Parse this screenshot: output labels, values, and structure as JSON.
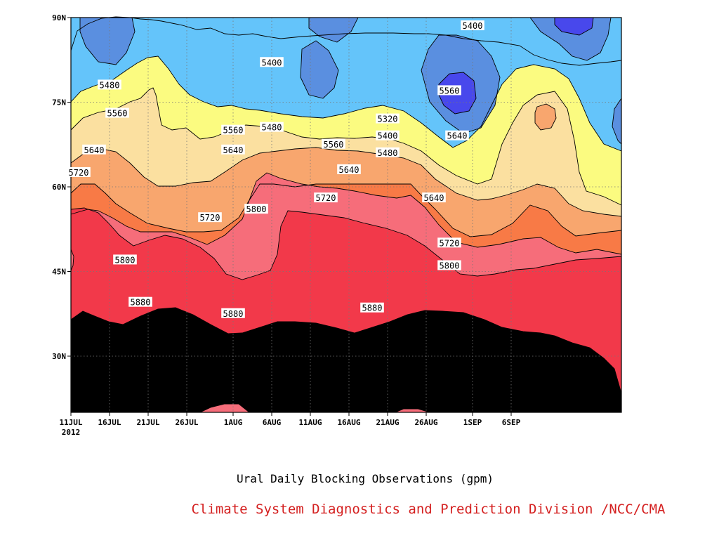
{
  "chart_data": {
    "type": "contour",
    "title": "Ural Daily Blocking Observations (gpm)",
    "credit": "Climate System Diagnostics and Prediction Division /NCC/CMA",
    "x_tick_labels": [
      "11JUL",
      "16JUL",
      "21JUL",
      "26JUL",
      "1AUG",
      "6AUG",
      "11AUG",
      "16AUG",
      "21AUG",
      "26AUG",
      "1SEP",
      "6SEP"
    ],
    "x_year_label": "2012",
    "y_tick_labels": [
      "30N",
      "45N",
      "60N",
      "75N",
      "90N"
    ],
    "ylim": [
      20,
      90
    ],
    "contour_levels": [
      5320,
      5400,
      5480,
      5560,
      5640,
      5720,
      5800,
      5880
    ],
    "level_colors": [
      "#4848ec",
      "#5a8fe0",
      "#64c4fa",
      "#fbfb80",
      "#fbe0a0",
      "#f8a66e",
      "#f87a46",
      "#f66d7a",
      "#f2394a"
    ],
    "contour_labels": [
      {
        "text": "5400",
        "x": "1SEP",
        "y": 88.5
      },
      {
        "text": "5400",
        "x": "6AUG",
        "y": 82
      },
      {
        "text": "5480",
        "x": "16JUL",
        "y": 78
      },
      {
        "text": "5560",
        "x": "29AUG",
        "y": 77
      },
      {
        "text": "5560",
        "x": "17JUL",
        "y": 73
      },
      {
        "text": "5320",
        "x": "21AUG",
        "y": 72
      },
      {
        "text": "5480",
        "x": "6AUG",
        "y": 70.5
      },
      {
        "text": "5560",
        "x": "1AUG",
        "y": 70
      },
      {
        "text": "5400",
        "x": "21AUG",
        "y": 69
      },
      {
        "text": "5640",
        "x": "30AUG",
        "y": 69
      },
      {
        "text": "5560",
        "x": "14AUG",
        "y": 67.5
      },
      {
        "text": "5640",
        "x": "14JUL",
        "y": 66.5
      },
      {
        "text": "5640",
        "x": "1AUG",
        "y": 66.5
      },
      {
        "text": "5480",
        "x": "21AUG",
        "y": 66
      },
      {
        "text": "5720",
        "x": "12JUL",
        "y": 62.5
      },
      {
        "text": "5640",
        "x": "16AUG",
        "y": 63
      },
      {
        "text": "5720",
        "x": "13AUG",
        "y": 58
      },
      {
        "text": "5640",
        "x": "27AUG",
        "y": 58
      },
      {
        "text": "5800",
        "x": "4AUG",
        "y": 56
      },
      {
        "text": "5720",
        "x": "29JUL",
        "y": 54.5
      },
      {
        "text": "5720",
        "x": "29AUG",
        "y": 50
      },
      {
        "text": "5800",
        "x": "18JUL",
        "y": 47
      },
      {
        "text": "5800",
        "x": "29AUG",
        "y": 46
      },
      {
        "text": "5880",
        "x": "20JUL",
        "y": 39.5
      },
      {
        "text": "5880",
        "x": "19AUG",
        "y": 38.5
      },
      {
        "text": "5880",
        "x": "1AUG",
        "y": 37.5
      }
    ]
  }
}
